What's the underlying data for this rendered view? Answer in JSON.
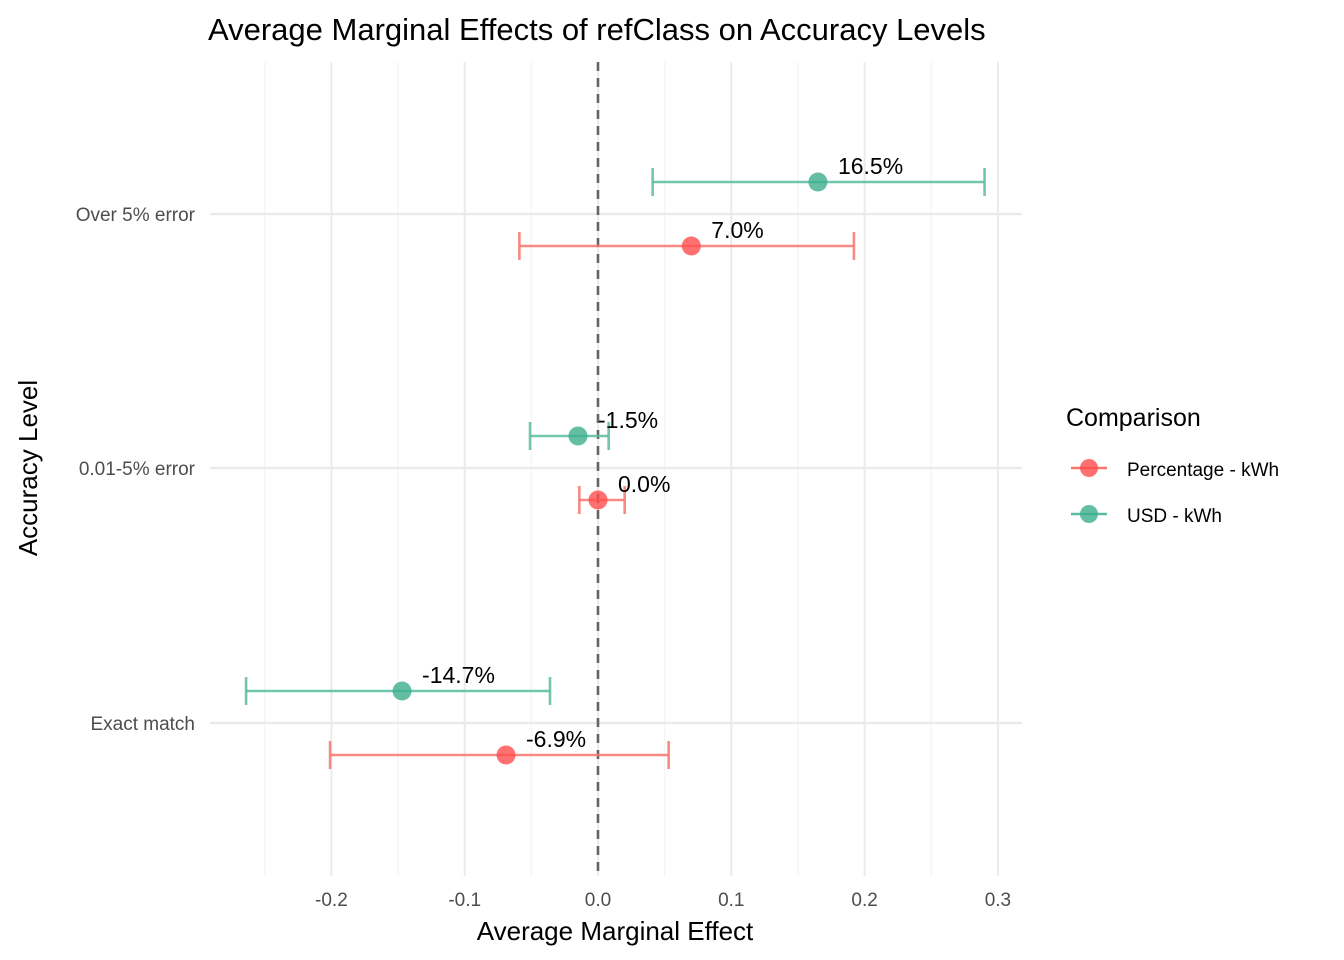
{
  "chart_data": {
    "type": "scatter",
    "title": "Average Marginal Effects of refClass on Accuracy Levels",
    "xlabel": "Average Marginal Effect",
    "ylabel": "Accuracy Level",
    "xlim": [
      -0.275,
      0.318
    ],
    "x_ticks": [
      -0.2,
      -0.1,
      0.0,
      0.1,
      0.2,
      0.3
    ],
    "x_tick_labels": [
      "-0.2",
      "-0.1",
      "0.0",
      "0.1",
      "0.2",
      "0.3"
    ],
    "categories": [
      "Over 5% error",
      "0.01-5% error",
      "Exact match"
    ],
    "reference_line_x": 0,
    "grid": true,
    "legend": {
      "title": "Comparison",
      "position": "right"
    },
    "series": [
      {
        "name": "Percentage - kWh",
        "color": "#F8766D",
        "points": [
          {
            "category": "Over 5% error",
            "estimate": 0.07,
            "lower": -0.059,
            "upper": 0.192,
            "label": "7.0%"
          },
          {
            "category": "0.01-5% error",
            "estimate": 0.0,
            "lower": -0.014,
            "upper": 0.02,
            "label": "0.0%"
          },
          {
            "category": "Exact match",
            "estimate": -0.069,
            "lower": -0.201,
            "upper": 0.053,
            "label": "-6.9%"
          }
        ]
      },
      {
        "name": "USD - kWh",
        "color": "#00BFC4",
        "points": [
          {
            "category": "Over 5% error",
            "estimate": 0.165,
            "lower": 0.041,
            "upper": 0.29,
            "label": "16.5%"
          },
          {
            "category": "0.01-5% error",
            "estimate": -0.015,
            "lower": -0.051,
            "upper": 0.008,
            "label": "-1.5%"
          },
          {
            "category": "Exact match",
            "estimate": -0.147,
            "lower": -0.264,
            "upper": -0.036,
            "label": "-14.7%"
          }
        ]
      }
    ]
  },
  "colors": {
    "percentage": "#F8766D",
    "percentage_point": "#FF4D4D",
    "usd": "#59BC9F",
    "usd_point": "#3DAE8C",
    "grid_major": "#EBEBEB",
    "grid_minor": "#F4F4F4",
    "reference_line": "#666666"
  }
}
